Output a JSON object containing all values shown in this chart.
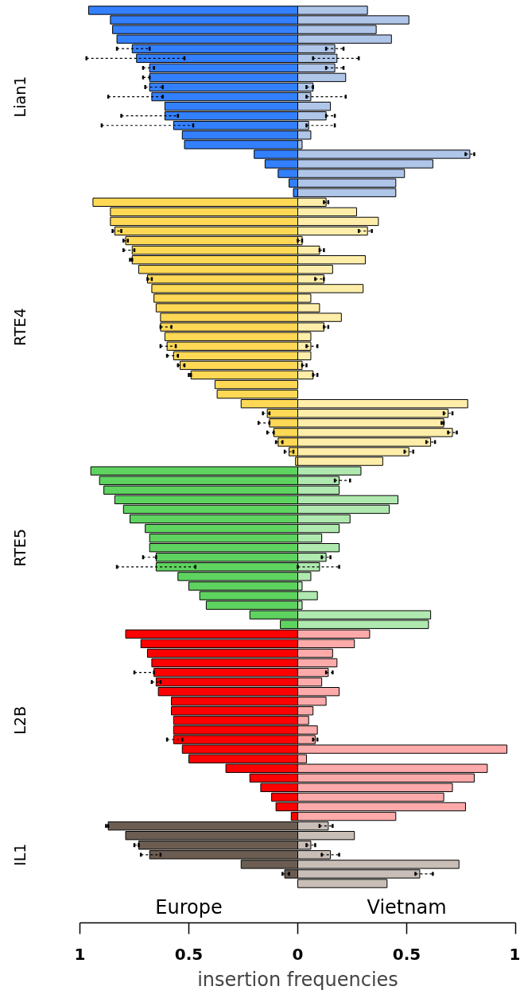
{
  "chart_data": {
    "type": "bar",
    "orientation": "horizontal",
    "xlabel": "insertion frequencies",
    "categories": [
      null,
      null,
      null,
      null,
      null,
      null,
      null,
      null,
      null,
      "Lian1",
      null,
      null,
      null,
      null,
      null,
      null,
      null,
      null,
      null,
      null,
      null,
      null,
      null,
      null,
      null,
      null,
      null,
      null,
      null,
      null,
      null,
      null,
      null,
      "RTE4",
      null,
      null,
      null,
      null,
      null,
      null,
      null,
      null,
      null,
      null,
      null,
      null,
      null,
      null,
      null,
      null,
      null,
      null,
      null,
      null,
      null,
      null,
      "RTE5",
      null,
      null,
      null,
      null,
      null,
      null,
      null,
      null,
      null,
      null,
      null,
      null,
      null,
      null,
      null,
      null,
      null,
      "L2B",
      null,
      null,
      null,
      null,
      null,
      null,
      null,
      null,
      null,
      null,
      null,
      null,
      null,
      "IL1",
      null,
      null,
      null
    ],
    "series": [
      {
        "name": "Europe",
        "colors": [
          "#3380ff",
          "#3380ff",
          "#3380ff",
          "#3380ff",
          "#3380ff",
          "#3380ff",
          "#3380ff",
          "#3380ff",
          "#3380ff",
          "#3380ff",
          "#3380ff",
          "#3380ff",
          "#3380ff",
          "#3380ff",
          "#3380ff",
          "#3380ff",
          "#3380ff",
          "#3380ff",
          "#3380ff",
          "#3380ff",
          "#ffd955",
          "#ffd955",
          "#ffd955",
          "#ffd955",
          "#ffd955",
          "#ffd955",
          "#ffd955",
          "#ffd955",
          "#ffd955",
          "#ffd955",
          "#ffd955",
          "#ffd955",
          "#ffd955",
          "#ffd955",
          "#ffd955",
          "#ffd955",
          "#ffd955",
          "#ffd955",
          "#ffd955",
          "#ffd955",
          "#ffd955",
          "#ffd955",
          "#ffd955",
          "#ffd955",
          "#ffd955",
          "#ffd955",
          "#ffd955",
          "#ffd955",
          "#5fd35f",
          "#5fd35f",
          "#5fd35f",
          "#5fd35f",
          "#5fd35f",
          "#5fd35f",
          "#5fd35f",
          "#5fd35f",
          "#5fd35f",
          "#5fd35f",
          "#5fd35f",
          "#5fd35f",
          "#5fd35f",
          "#5fd35f",
          "#5fd35f",
          "#5fd35f",
          "#5fd35f",
          "#ff0000",
          "#ff0000",
          "#ff0000",
          "#ff0000",
          "#ff0000",
          "#ff0000",
          "#ff0000",
          "#ff0000",
          "#ff0000",
          "#ff0000",
          "#ff0000",
          "#ff0000",
          "#ff0000",
          "#ff0000",
          "#ff0000",
          "#ff0000",
          "#ff0000",
          "#ff0000",
          "#ff0000",
          "#ff0000",
          "#6c5d53",
          "#6c5d53",
          "#6c5d53",
          "#6c5d53",
          "#6c5d53",
          "#6c5d53",
          "#6c5d53"
        ],
        "values": [
          -0.96,
          -0.86,
          -0.85,
          -0.83,
          -0.76,
          -0.74,
          -0.68,
          -0.68,
          -0.68,
          -0.67,
          -0.61,
          -0.61,
          -0.57,
          -0.53,
          -0.52,
          -0.2,
          -0.15,
          -0.09,
          -0.04,
          -0.02,
          -0.94,
          -0.86,
          -0.86,
          -0.84,
          -0.79,
          -0.76,
          -0.76,
          -0.73,
          -0.69,
          -0.67,
          -0.66,
          -0.65,
          -0.63,
          -0.63,
          -0.61,
          -0.6,
          -0.57,
          -0.54,
          -0.49,
          -0.38,
          -0.37,
          -0.26,
          -0.14,
          -0.13,
          -0.11,
          -0.09,
          -0.04,
          -0.01,
          -0.95,
          -0.91,
          -0.89,
          -0.84,
          -0.8,
          -0.77,
          -0.7,
          -0.68,
          -0.68,
          -0.65,
          -0.65,
          -0.55,
          -0.5,
          -0.45,
          -0.42,
          -0.22,
          -0.08,
          -0.79,
          -0.72,
          -0.69,
          -0.67,
          -0.66,
          -0.65,
          -0.64,
          -0.58,
          -0.58,
          -0.57,
          -0.57,
          -0.57,
          -0.53,
          -0.5,
          -0.33,
          -0.22,
          -0.17,
          -0.12,
          -0.1,
          -0.03,
          -0.87,
          -0.79,
          -0.73,
          -0.68,
          -0.26,
          -0.06,
          0
        ],
        "errors": [
          null,
          null,
          null,
          null,
          [
            -0.83,
            -0.68
          ],
          [
            -0.97,
            -0.52
          ],
          [
            -0.71,
            -0.66
          ],
          [
            -0.71,
            -0.68
          ],
          [
            -0.7,
            -0.62
          ],
          [
            -0.87,
            -0.62
          ],
          null,
          [
            -0.81,
            -0.55
          ],
          [
            -0.9,
            -0.48
          ],
          null,
          null,
          null,
          null,
          null,
          null,
          null,
          null,
          null,
          null,
          [
            -0.85,
            -0.81
          ],
          [
            -0.8,
            -0.78
          ],
          [
            -0.8,
            -0.75
          ],
          [
            -0.77,
            -0.76
          ],
          null,
          [
            -0.69,
            -0.67
          ],
          null,
          null,
          null,
          null,
          [
            -0.63,
            -0.58
          ],
          null,
          [
            -0.63,
            -0.56
          ],
          [
            -0.6,
            -0.55
          ],
          [
            -0.55,
            -0.52
          ],
          [
            -0.5,
            -0.49
          ],
          null,
          null,
          null,
          [
            -0.16,
            -0.13
          ],
          [
            -0.18,
            -0.13
          ],
          [
            -0.14,
            -0.11
          ],
          [
            -0.1,
            -0.07
          ],
          [
            -0.06,
            -0.02
          ],
          null,
          null,
          null,
          null,
          null,
          null,
          null,
          null,
          null,
          null,
          [
            -0.71,
            -0.65
          ],
          [
            -0.83,
            -0.47
          ],
          null,
          null,
          null,
          null,
          null,
          null,
          null,
          null,
          null,
          null,
          [
            -0.75,
            -0.66
          ],
          [
            -0.67,
            -0.63
          ],
          null,
          null,
          null,
          null,
          null,
          [
            -0.6,
            -0.53
          ],
          null,
          null,
          null,
          null,
          null,
          null,
          null,
          null,
          [
            -0.88,
            -0.87
          ],
          null,
          [
            -0.75,
            -0.73
          ],
          [
            -0.72,
            -0.63
          ],
          null,
          [
            -0.07,
            -0.04
          ],
          null
        ]
      },
      {
        "name": "Vietnam",
        "colors": [
          "#afc6e9",
          "#afc6e9",
          "#afc6e9",
          "#afc6e9",
          "#afc6e9",
          "#afc6e9",
          "#afc6e9",
          "#afc6e9",
          "#afc6e9",
          "#afc6e9",
          "#afc6e9",
          "#afc6e9",
          "#afc6e9",
          "#afc6e9",
          "#afc6e9",
          "#afc6e9",
          "#afc6e9",
          "#afc6e9",
          "#afc6e9",
          "#afc6e9",
          "#ffeeaa",
          "#ffeeaa",
          "#ffeeaa",
          "#ffeeaa",
          "#ffeeaa",
          "#ffeeaa",
          "#ffeeaa",
          "#ffeeaa",
          "#ffeeaa",
          "#ffeeaa",
          "#ffeeaa",
          "#ffeeaa",
          "#ffeeaa",
          "#ffeeaa",
          "#ffeeaa",
          "#ffeeaa",
          "#ffeeaa",
          "#ffeeaa",
          "#ffeeaa",
          "#ffeeaa",
          "#ffeeaa",
          "#ffeeaa",
          "#ffeeaa",
          "#ffeeaa",
          "#ffeeaa",
          "#ffeeaa",
          "#ffeeaa",
          "#ffeeaa",
          "#afe9af",
          "#afe9af",
          "#afe9af",
          "#afe9af",
          "#afe9af",
          "#afe9af",
          "#afe9af",
          "#afe9af",
          "#afe9af",
          "#afe9af",
          "#afe9af",
          "#afe9af",
          "#afe9af",
          "#afe9af",
          "#afe9af",
          "#afe9af",
          "#afe9af",
          "#ffaaaa",
          "#ffaaaa",
          "#ffaaaa",
          "#ffaaaa",
          "#ffaaaa",
          "#ffaaaa",
          "#ffaaaa",
          "#ffaaaa",
          "#ffaaaa",
          "#ffaaaa",
          "#ffaaaa",
          "#ffaaaa",
          "#ffaaaa",
          "#ffaaaa",
          "#ffaaaa",
          "#ffaaaa",
          "#ffaaaa",
          "#ffaaaa",
          "#ffaaaa",
          "#ffaaaa",
          "#c8beb7",
          "#c8beb7",
          "#c8beb7",
          "#c8beb7",
          "#c8beb7",
          "#c8beb7",
          "#c8beb7"
        ],
        "values": [
          0.32,
          0.51,
          0.36,
          0.43,
          0.17,
          0.18,
          0.17,
          0.22,
          0.07,
          0.06,
          0.15,
          0.13,
          0.05,
          0.06,
          0.02,
          0.79,
          0.62,
          0.49,
          0.45,
          0.45,
          0.13,
          0.27,
          0.37,
          0.32,
          0.02,
          0.1,
          0.31,
          0.16,
          0.12,
          0.3,
          0.06,
          0.1,
          0.2,
          0.12,
          0.06,
          0.06,
          0.06,
          0.02,
          0.07,
          0,
          0,
          0.78,
          0.69,
          0.67,
          0.71,
          0.61,
          0.51,
          0.39,
          0.29,
          0.19,
          0.19,
          0.46,
          0.42,
          0.24,
          0.19,
          0.11,
          0.19,
          0.13,
          0.1,
          0.06,
          0.02,
          0.09,
          0.02,
          0.61,
          0.6,
          0.33,
          0.26,
          0.16,
          0.18,
          0.14,
          0.11,
          0.19,
          0.13,
          0.07,
          0.05,
          0.09,
          0.08,
          0.96,
          0.04,
          0.87,
          0.81,
          0.71,
          0.67,
          0.77,
          0.45,
          0.14,
          0.26,
          0.06,
          0.15,
          0.74,
          0.56,
          0.41
        ],
        "errors": [
          null,
          null,
          null,
          null,
          [
            0.13,
            0.21
          ],
          [
            0.07,
            0.28
          ],
          [
            0.13,
            0.21
          ],
          null,
          [
            0.04,
            0.07
          ],
          [
            0.04,
            0.22
          ],
          null,
          [
            0.13,
            0.17
          ],
          [
            0.04,
            0.17
          ],
          null,
          null,
          [
            0.77,
            0.81
          ],
          null,
          null,
          null,
          null,
          [
            0.12,
            0.14
          ],
          null,
          null,
          [
            0.28,
            0.34
          ],
          [
            0,
            0.02
          ],
          [
            0.1,
            0.12
          ],
          null,
          null,
          [
            0.08,
            0.12
          ],
          null,
          null,
          null,
          null,
          [
            0.12,
            0.14
          ],
          null,
          [
            0.04,
            0.09
          ],
          null,
          [
            0.02,
            0.04
          ],
          [
            0.07,
            0.09
          ],
          null,
          null,
          null,
          [
            0.67,
            0.71
          ],
          [
            0.66,
            0.67
          ],
          [
            0.69,
            0.73
          ],
          [
            0.59,
            0.63
          ],
          [
            0.49,
            0.53
          ],
          null,
          null,
          [
            0.17,
            0.24
          ],
          null,
          null,
          null,
          null,
          null,
          null,
          null,
          [
            0.11,
            0.15
          ],
          [
            0,
            0.19
          ],
          null,
          null,
          null,
          null,
          null,
          null,
          null,
          null,
          null,
          null,
          [
            0.13,
            0.16
          ],
          null,
          null,
          null,
          null,
          null,
          null,
          [
            0.07,
            0.09
          ],
          null,
          null,
          null,
          null,
          null,
          null,
          null,
          null,
          [
            0.1,
            0.16
          ],
          null,
          [
            0.04,
            0.08
          ],
          [
            0.11,
            0.19
          ],
          null,
          [
            0.54,
            0.62
          ],
          null
        ]
      }
    ],
    "xlim": [
      -1,
      1
    ],
    "xticks": [
      {
        "value": -1,
        "label": "1"
      },
      {
        "value": -0.5,
        "label": "0.5"
      },
      0,
      0.5,
      1
    ],
    "stacked": true,
    "grid": false
  }
}
